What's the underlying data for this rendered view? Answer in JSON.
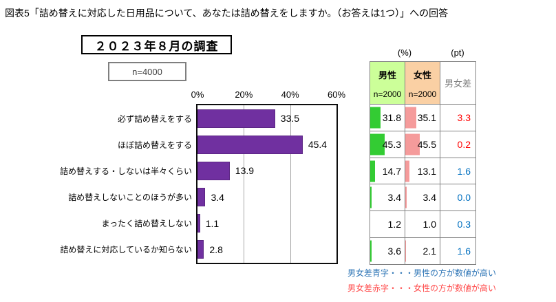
{
  "figure_title": "図表5「詰め替えに対応した日用品について、あなたは詰め替えをしますか。（お答えは1つ）」への回答",
  "survey_heading": "２０２３年８月の調査",
  "sample_size_label": "n=4000",
  "chart_data": {
    "type": "bar",
    "orientation": "horizontal",
    "title": "２０２３年８月の調査",
    "sample_size": "n=4000",
    "categories": [
      "必ず詰め替えをする",
      "ほぼ詰め替えをする",
      "詰め替えする・しないは半々くらい",
      "詰め替えしないことのほうが多い",
      "まったく詰め替えしない",
      "詰め替えに対応しているか知らない"
    ],
    "values": [
      "33.5",
      "45.4",
      "13.9",
      "3.4",
      "1.1",
      "2.8"
    ],
    "xlim": [
      0,
      60
    ],
    "x_ticks": [
      0,
      20,
      40,
      60
    ],
    "x_tick_labels": [
      "0%",
      "20%",
      "40%",
      "60%"
    ],
    "bar_color": "#7030A0",
    "grid": "vertical-solid-gray"
  },
  "table": {
    "pct_header": "(%)",
    "pt_header": "(pt)",
    "columns": [
      {
        "label": "男性",
        "sub": "n=2000",
        "bg": "#CCFF99",
        "bar_color": "#33CC33"
      },
      {
        "label": "女性",
        "sub": "n=2000",
        "bg": "#FAD0A4",
        "bar_color": "#F59B9B"
      },
      {
        "label": "男女差",
        "sub": "",
        "bg": "#FFFFFF",
        "bar_color": ""
      }
    ],
    "rows": [
      {
        "male": "31.8",
        "female": "35.1",
        "diff": "3.3",
        "diff_color": "red"
      },
      {
        "male": "45.3",
        "female": "45.5",
        "diff": "0.2",
        "diff_color": "red"
      },
      {
        "male": "14.7",
        "female": "13.1",
        "diff": "1.6",
        "diff_color": "blue"
      },
      {
        "male": "3.4",
        "female": "3.4",
        "diff": "0.0",
        "diff_color": "blue"
      },
      {
        "male": "1.2",
        "female": "1.0",
        "diff": "0.3",
        "diff_color": "blue"
      },
      {
        "male": "3.6",
        "female": "2.1",
        "diff": "1.6",
        "diff_color": "blue"
      }
    ],
    "diff_colors": {
      "red": "#FF0000",
      "blue": "#0070C0"
    }
  },
  "footnotes": [
    {
      "text": "男女差青字・・・男性の方が数値が高い",
      "color": "#2E75B6"
    },
    {
      "text": "男女差赤字・・・女性の方が数値が高い",
      "color": "#FF4B4B"
    }
  ]
}
